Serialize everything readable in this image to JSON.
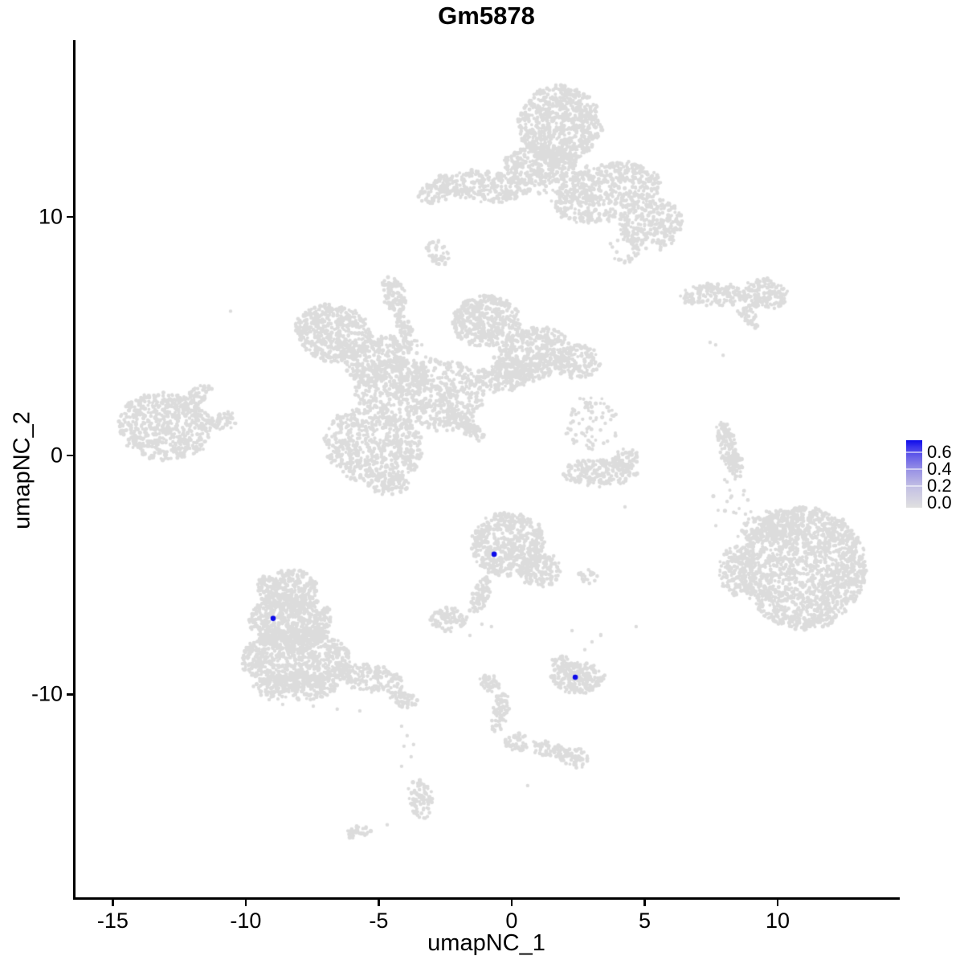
{
  "title": "Gm5878",
  "axes": {
    "x": {
      "label": "umapNC_1",
      "ticks": [
        -15,
        -10,
        -5,
        0,
        5,
        10
      ]
    },
    "y": {
      "label": "umapNC_2",
      "ticks": [
        10,
        0,
        -10
      ]
    }
  },
  "legend": {
    "tick_labels": [
      "0.6",
      "0.4",
      "0.2",
      "0.0"
    ],
    "tick_values": [
      0.6,
      0.4,
      0.2,
      0.0
    ],
    "min_color": "#E0E0E0",
    "max_color": "#0D0BEA"
  },
  "colors": {
    "background_points": "#DCDCDC",
    "highlight_points": "#0D0BEA",
    "axis": "#000000"
  },
  "chart_data": {
    "type": "scatter",
    "title": "Gm5878",
    "xlabel": "umapNC_1",
    "ylabel": "umapNC_2",
    "xlim": [
      -16.4,
      14.5
    ],
    "ylim": [
      -18.5,
      17.4
    ],
    "grid": false,
    "legend_position": "right",
    "background_clusters": [
      [
        1.81,
        13.88,
        1.57,
        1.61,
        0,
        700
      ],
      [
        1.06,
        12.2,
        1.36,
        0.84,
        0,
        300
      ],
      [
        -1.12,
        11.29,
        1.81,
        0.67,
        -5,
        320
      ],
      [
        -3.02,
        10.92,
        0.6,
        0.47,
        0,
        60
      ],
      [
        3.57,
        11.02,
        2.11,
        1.18,
        15,
        550
      ],
      [
        5.23,
        9.68,
        1.21,
        1.08,
        20,
        260
      ],
      [
        1.9,
        11.53,
        1.15,
        0.94,
        0,
        60
      ],
      [
        4.26,
        8.67,
        0.54,
        0.61,
        0,
        25
      ],
      [
        -2.78,
        8.5,
        0.36,
        0.54,
        30,
        40
      ],
      [
        -6.71,
        5.14,
        1.45,
        1.18,
        -10,
        500
      ],
      [
        -5.05,
        4.07,
        1.27,
        0.87,
        25,
        280
      ],
      [
        -4.44,
        6.76,
        0.42,
        0.81,
        15,
        90
      ],
      [
        -3.93,
        5.14,
        0.24,
        0.94,
        25,
        60
      ],
      [
        -0.97,
        5.65,
        1.27,
        1.08,
        0,
        420
      ],
      [
        0.76,
        4.24,
        1.45,
        1.08,
        20,
        420
      ],
      [
        2.45,
        3.9,
        0.85,
        0.74,
        0,
        160
      ],
      [
        -2.69,
        2.55,
        1.66,
        1.51,
        0,
        450
      ],
      [
        -4.53,
        3.03,
        1.45,
        0.94,
        25,
        260
      ],
      [
        -5.2,
        0.44,
        1.87,
        1.61,
        -15,
        650
      ],
      [
        -4.65,
        -1.18,
        0.79,
        0.47,
        0,
        80
      ],
      [
        -1.72,
        1.28,
        0.97,
        0.3,
        -45,
        90
      ],
      [
        -0.3,
        3.29,
        1.21,
        0.61,
        10,
        180
      ],
      [
        -13.05,
        1.21,
        1.75,
        1.41,
        -8,
        600
      ],
      [
        -11.78,
        2.55,
        0.6,
        0.37,
        35,
        50
      ],
      [
        -10.88,
        1.45,
        0.54,
        0.34,
        10,
        45
      ],
      [
        7.64,
        6.72,
        1.27,
        0.44,
        3,
        150
      ],
      [
        9.46,
        6.76,
        0.91,
        0.64,
        0,
        150
      ],
      [
        8.94,
        5.78,
        0.51,
        0.27,
        -40,
        35
      ],
      [
        3.02,
        1.34,
        1.0,
        1.11,
        0,
        70
      ],
      [
        3.32,
        -0.71,
        1.42,
        0.57,
        0,
        220
      ],
      [
        4.29,
        -0.1,
        0.45,
        0.44,
        0,
        50
      ],
      [
        8.13,
        0.44,
        0.33,
        1.08,
        12,
        110
      ],
      [
        8.43,
        -0.4,
        0.24,
        0.54,
        5,
        40
      ],
      [
        10.97,
        -4.71,
        2.36,
        2.55,
        0,
        1600
      ],
      [
        8.46,
        -4.84,
        0.73,
        1.01,
        0,
        160
      ],
      [
        9.7,
        -2.92,
        1.06,
        0.61,
        15,
        120
      ],
      [
        8.31,
        -2.25,
        0.85,
        1.28,
        0,
        18
      ],
      [
        -0.15,
        -3.7,
        1.39,
        1.34,
        0,
        550
      ],
      [
        1.09,
        -4.84,
        0.79,
        0.67,
        20,
        130
      ],
      [
        -1.18,
        -5.85,
        0.3,
        0.81,
        -18,
        70
      ],
      [
        -2.39,
        -6.86,
        0.69,
        0.47,
        0,
        90
      ],
      [
        2.84,
        -5.08,
        0.39,
        0.27,
        0,
        25
      ],
      [
        -8.46,
        -5.55,
        1.15,
        0.81,
        0,
        300
      ],
      [
        -8.31,
        -6.96,
        1.57,
        1.18,
        0,
        600
      ],
      [
        -8.13,
        -8.54,
        2.05,
        1.28,
        0,
        800
      ],
      [
        -8.13,
        -9.68,
        1.57,
        0.54,
        0,
        220
      ],
      [
        -5.29,
        -9.34,
        1.27,
        0.57,
        -12,
        180
      ],
      [
        -4.05,
        -10.22,
        0.51,
        0.34,
        -20,
        45
      ],
      [
        2.45,
        -9.31,
        1.0,
        0.64,
        0,
        200
      ],
      [
        1.9,
        -8.67,
        0.39,
        0.3,
        0,
        35
      ],
      [
        -0.88,
        -9.55,
        0.39,
        0.37,
        0,
        40
      ],
      [
        -0.45,
        -10.76,
        0.3,
        0.87,
        -12,
        70
      ],
      [
        0.18,
        -12.0,
        0.45,
        0.37,
        0,
        45
      ],
      [
        1.3,
        -12.27,
        0.79,
        0.3,
        -10,
        60
      ],
      [
        2.33,
        -12.64,
        0.57,
        0.4,
        -15,
        55
      ],
      [
        -3.44,
        -14.35,
        0.42,
        0.91,
        8,
        80
      ],
      [
        -5.74,
        -15.76,
        0.48,
        0.27,
        12,
        30
      ]
    ],
    "singleton_points": [
      [
        -2.75,
        9.01
      ],
      [
        -10.57,
        6.05
      ],
      [
        -3.38,
        4.64
      ],
      [
        -3.23,
        4.13
      ],
      [
        -2.93,
        3.56
      ],
      [
        7.67,
        4.64
      ],
      [
        7.95,
        4.2
      ],
      [
        7.46,
        4.74
      ],
      [
        2.57,
        2.39
      ],
      [
        2.78,
        2.05
      ],
      [
        8.01,
        -1.01
      ],
      [
        8.1,
        -1.92
      ],
      [
        8.79,
        -2.45
      ],
      [
        -1.12,
        -7.06
      ],
      [
        -0.76,
        -7.16
      ],
      [
        -1.57,
        -7.53
      ],
      [
        2.27,
        -7.33
      ],
      [
        3.35,
        -7.5
      ],
      [
        1.69,
        -4.84
      ],
      [
        -8.61,
        -10.42
      ],
      [
        -7.46,
        -10.49
      ],
      [
        -6.56,
        -10.62
      ],
      [
        -5.71,
        -10.69
      ],
      [
        -9.12,
        -10.22
      ],
      [
        2.75,
        -8.13
      ],
      [
        3.02,
        -7.8
      ],
      [
        3.35,
        -7.53
      ],
      [
        0.6,
        -13.82
      ],
      [
        -0.73,
        -11.46
      ],
      [
        -4.14,
        -11.33
      ],
      [
        -3.93,
        -11.73
      ],
      [
        -4.05,
        -12.17
      ],
      [
        -3.78,
        -12.61
      ],
      [
        -4.14,
        -13.01
      ],
      [
        -3.69,
        -12.1
      ],
      [
        -4.68,
        -15.46
      ],
      [
        4.68,
        -7.16
      ],
      [
        4.26,
        -2.15
      ]
    ],
    "expressing_cells": [
      {
        "x": -8.97,
        "y": -6.82,
        "value": 0.7
      },
      {
        "x": -0.66,
        "y": -4.13,
        "value": 0.7
      },
      {
        "x": 2.39,
        "y": -9.28,
        "value": 0.7
      }
    ]
  }
}
